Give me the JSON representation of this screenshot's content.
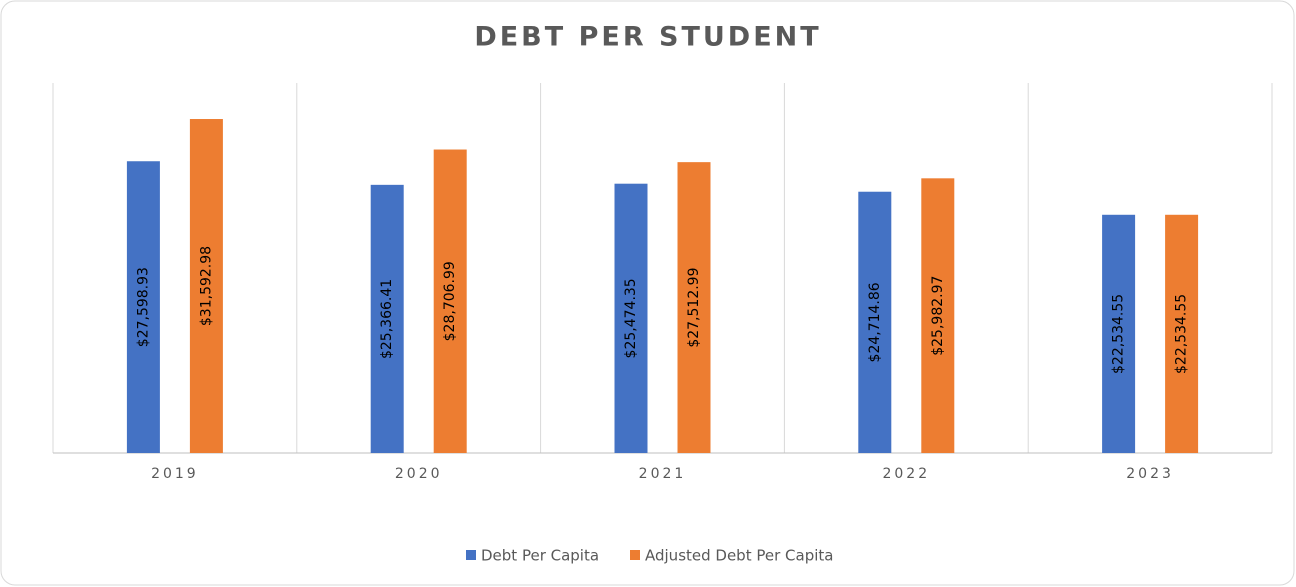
{
  "chart_data": {
    "type": "bar",
    "title": "DEBT PER STUDENT",
    "categories": [
      "2019",
      "2020",
      "2021",
      "2022",
      "2023"
    ],
    "series": [
      {
        "name": "Debt Per Capita",
        "color": "#4472c4",
        "values": [
          27598.93,
          25366.41,
          25474.35,
          24714.86,
          22534.55
        ],
        "value_labels": [
          "$27,598.93",
          "$25,366.41",
          "$25,474.35",
          "$24,714.86",
          "$22,534.55"
        ]
      },
      {
        "name": "Adjusted Debt Per Capita",
        "color": "#ed7d31",
        "values": [
          31592.98,
          28706.99,
          27512.99,
          25982.97,
          22534.55
        ],
        "value_labels": [
          "$31,592.98",
          "$28,706.99",
          "$27,512.99",
          "$25,982.97",
          "$22,534.55"
        ]
      }
    ],
    "ylim": [
      0,
      35000
    ],
    "legend": "bottom"
  }
}
